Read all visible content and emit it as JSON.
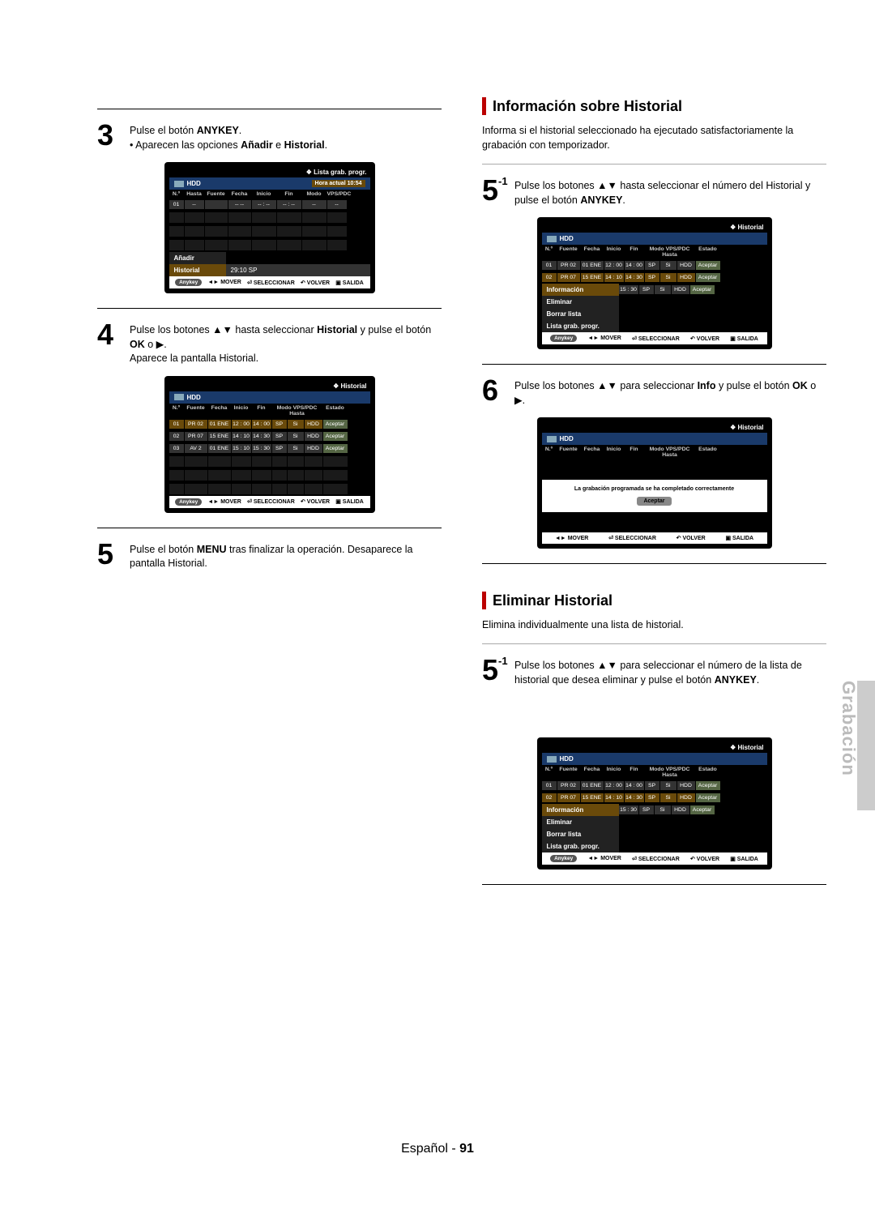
{
  "side_tab": "Grabación",
  "footer_lang": "Español -",
  "footer_page": "91",
  "sections": {
    "info_title": "Información sobre Historial",
    "info_desc": "Informa si el historial seleccionado ha ejecutado satisfactoriamente la grabación con temporizador.",
    "elim_title": "Eliminar Historial",
    "elim_desc": "Elimina individualmente una lista de historial."
  },
  "steps": {
    "s3": "Pulse el botón <b>ANYKEY</b>.<br>• Aparecen las opciones <b>Añadir</b> e <b>Historial</b>.",
    "s4": "Pulse los botones ▲▼ hasta seleccionar <b>Historial</b> y pulse el botón <b>OK</b> o ▶.<br>Aparece la pantalla Historial.",
    "s5": "Pulse el botón <b>MENU</b> tras finalizar la operación. Desaparece la pantalla Historial.",
    "r5_1": "Pulse los botones ▲▼ hasta seleccionar el número del Historial y pulse el botón <b>ANYKEY</b>.",
    "r6": "Pulse los botones ▲▼ para seleccionar <b>Info</b> y pulse el botón <b>OK</b> o ▶.",
    "e5_1": "Pulse los botones ▲▼ para seleccionar el número de la lista de historial que desea eliminar y pulse el botón <b>ANYKEY</b>."
  },
  "tv": {
    "title_lista": "Lista grab. progr.",
    "title_hist": "Historial",
    "hdd": "HDD",
    "time_label": "Hora actual 10:54",
    "hdr_lista": [
      "N.º",
      "Hasta",
      "Fuente",
      "Fecha",
      "Inicio",
      "Fin",
      "Modo",
      "VPS/PDC"
    ],
    "row_lista": [
      "01",
      "--",
      "-- --",
      "-- : --",
      "-- : --",
      "--",
      "--"
    ],
    "menu_add": "Añadir",
    "menu_hist": "Historial",
    "menu_hist_val": "29:10  SP",
    "hdr_hist": [
      "N.º",
      "Fuente",
      "Fecha",
      "Inicio",
      "Fin",
      "Modo VPS/PDC Hasta",
      "Estado"
    ],
    "rows_hist": [
      [
        "01",
        "PR 02",
        "01 ENE",
        "12 : 00",
        "14 : 00",
        "SP",
        "Si",
        "HDD",
        "Aceptar"
      ],
      [
        "02",
        "PR 07",
        "15 ENE",
        "14 : 10",
        "14 : 30",
        "SP",
        "Si",
        "HDD",
        "Aceptar"
      ],
      [
        "03",
        "AV 2",
        "01 ENE",
        "15 : 10",
        "15 : 30",
        "SP",
        "Si",
        "HDD",
        "Aceptar"
      ]
    ],
    "rows_hist2": [
      [
        "01",
        "PR 02",
        "01 ENE",
        "12 : 00",
        "14 : 00",
        "SP",
        "Si",
        "HDD",
        "Aceptar"
      ],
      [
        "02",
        "PR 07",
        "15 ENE",
        "14 : 10",
        "14 : 30",
        "SP",
        "Si",
        "HDD",
        "Aceptar"
      ],
      [
        "",
        "",
        "",
        "",
        "15 : 30",
        "SP",
        "Si",
        "HDD",
        "Aceptar"
      ]
    ],
    "menu_info": "Información",
    "menu_elim": "Eliminar",
    "menu_borrar": "Borrar lista",
    "menu_lista": "Lista grab. progr.",
    "ok_msg": "La grabación programada se ha completado correctamente",
    "ok_btn": "Aceptar",
    "foot_anykey": "Anykey",
    "foot_mover": "MOVER",
    "foot_sel": "SELECCIONAR",
    "foot_vol": "VOLVER",
    "foot_sal": "SALIDA"
  }
}
